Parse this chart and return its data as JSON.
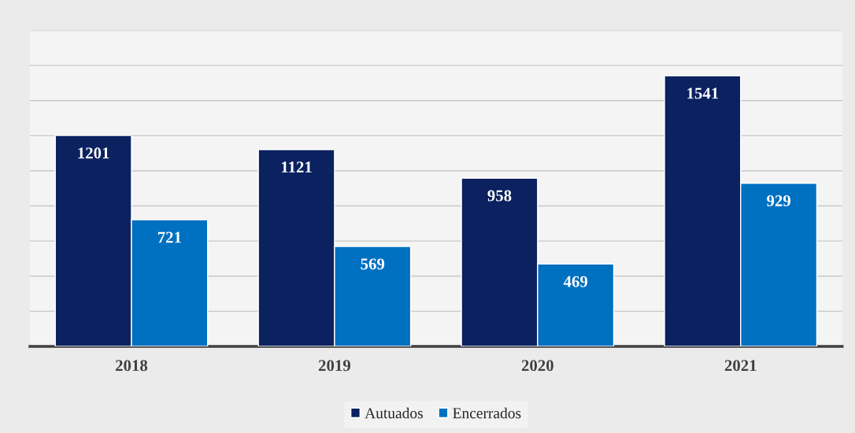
{
  "chart_data": {
    "type": "bar",
    "categories": [
      "2018",
      "2019",
      "2020",
      "2021"
    ],
    "series": [
      {
        "name": "Autuados",
        "color": "#0b2160",
        "values": [
          1201,
          1121,
          958,
          1541
        ]
      },
      {
        "name": "Encerrados",
        "color": "#0070c0",
        "values": [
          721,
          569,
          469,
          929
        ]
      }
    ],
    "ylim": [
      0,
      1800
    ],
    "yticks": [
      {
        "value": 0,
        "label": null
      },
      {
        "value": 200,
        "label": null
      },
      {
        "value": 400,
        "label": null
      },
      {
        "value": 600,
        "label": null
      },
      {
        "value": 800,
        "label": null
      },
      {
        "value": 1000,
        "label": null
      },
      {
        "value": 1200,
        "label": null
      },
      {
        "value": 1400,
        "label": null
      },
      {
        "value": 1600,
        "label": null
      },
      {
        "value": 1800,
        "label": null
      }
    ],
    "grid": "y",
    "legend": "bottom",
    "data_labels": true,
    "tick_labels": "x"
  }
}
